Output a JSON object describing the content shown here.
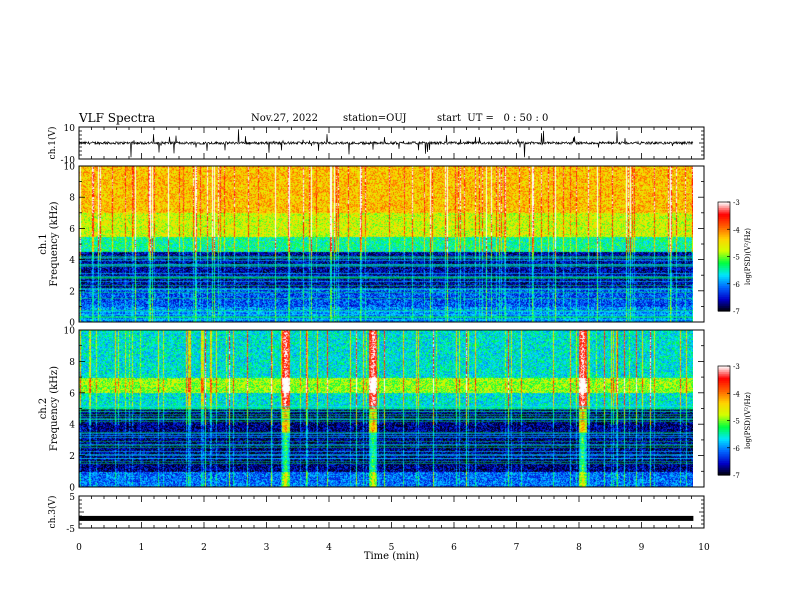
{
  "header": {
    "title": "VLF Spectra",
    "date": "Nov.27, 2022",
    "station": "station=OUJ",
    "start": "start  UT =   0 : 50 : 0"
  },
  "chart_data": [
    {
      "type": "line",
      "name": "ch1-waveform",
      "ylabel": "ch.1(V)",
      "ylim": [
        -10,
        10
      ],
      "y_tick_labels": [
        "10",
        "-10"
      ],
      "description_values": {
        "baseline": 0,
        "typical_amplitude": 2
      }
    },
    {
      "type": "heatmap",
      "name": "ch1-spectrogram",
      "ylabel": "ch.1\nFrequency (kHz)",
      "ylim": [
        0,
        10
      ],
      "y_ticks": [
        0,
        2,
        4,
        6,
        8,
        10
      ],
      "colorbar": {
        "label": "log(PSD)(V²/Hz)",
        "range": [
          -7,
          -3
        ],
        "ticks": [
          -7,
          -6,
          -5,
          -4,
          -3
        ],
        "colors": [
          "#000000",
          "#0000c8",
          "#0066ff",
          "#00e5ff",
          "#00ff40",
          "#d2ff00",
          "#ffd200",
          "#ff6000",
          "#ff0000",
          "#ffffff"
        ]
      },
      "bands": [
        {
          "f_range": [
            0,
            1
          ],
          "log_psd": -6.0
        },
        {
          "f_range": [
            1,
            2.2
          ],
          "log_psd": -6.2
        },
        {
          "f_range": [
            2.2,
            4.5
          ],
          "log_psd": -6.6
        },
        {
          "f_range": [
            4.5,
            5.5
          ],
          "log_psd": -5.4
        },
        {
          "f_range": [
            5.5,
            7
          ],
          "log_psd": -4.7
        },
        {
          "f_range": [
            7,
            10
          ],
          "log_psd": -4.3
        }
      ]
    },
    {
      "type": "heatmap",
      "name": "ch2-spectrogram",
      "ylabel": "ch.2\nFrequency (kHz)",
      "ylim": [
        0,
        10
      ],
      "y_ticks": [
        0,
        2,
        4,
        6,
        8,
        10
      ],
      "colorbar": {
        "label": "log(PSD)(V²/Hz)",
        "range": [
          -7,
          -3
        ],
        "ticks": [
          -7,
          -6,
          -5,
          -4,
          -3
        ],
        "colors": [
          "#000000",
          "#0000c8",
          "#0066ff",
          "#00e5ff",
          "#00ff40",
          "#d2ff00",
          "#ffd200",
          "#ff6000",
          "#ff0000",
          "#ffffff"
        ]
      },
      "bands": [
        {
          "f_range": [
            0,
            1
          ],
          "log_psd": -6.1
        },
        {
          "f_range": [
            1,
            5
          ],
          "log_psd": -6.7
        },
        {
          "f_range": [
            5,
            6
          ],
          "log_psd": -5.6
        },
        {
          "f_range": [
            6,
            7
          ],
          "log_psd": -4.9
        },
        {
          "f_range": [
            7,
            10
          ],
          "log_psd": -5.6
        }
      ],
      "bright_events_min": [
        3.3,
        4.7,
        8.05
      ]
    },
    {
      "type": "line",
      "name": "ch3-waveform",
      "ylabel": "ch.3(V)",
      "ylim": [
        -5,
        5
      ],
      "y_tick_labels": [
        "5",
        "-5"
      ],
      "description_values": {
        "level": -2
      }
    }
  ],
  "xaxis": {
    "label": "Time (min)",
    "range": [
      0,
      10
    ],
    "ticks": [
      0,
      1,
      2,
      3,
      4,
      5,
      6,
      7,
      8,
      9,
      10
    ],
    "data_end": 9.83
  }
}
